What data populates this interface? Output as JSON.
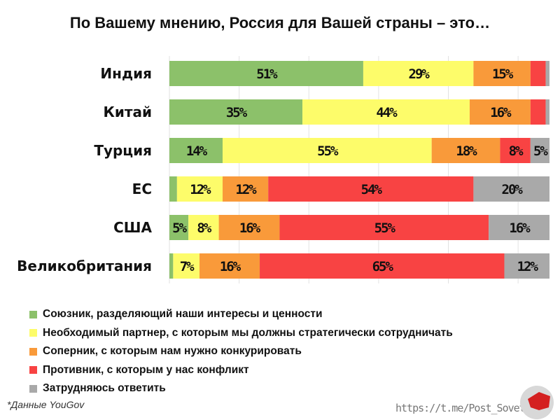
{
  "chart_data": {
    "type": "bar",
    "orientation": "horizontal",
    "stacked": "100%",
    "title": "По Вашему мнению, Россия для Вашей страны – это…",
    "categories": [
      "Индия",
      "Китай",
      "Турция",
      "ЕС",
      "США",
      "Великобритания"
    ],
    "series": [
      {
        "name": "Союзник, разделяющий наши интересы и ценности",
        "color": "#8cc16a",
        "values": [
          51,
          35,
          14,
          2,
          5,
          1
        ],
        "labels": [
          "51%",
          "35%",
          "14%",
          "",
          "5%",
          ""
        ]
      },
      {
        "name": "Необходимый партнер, с которым мы должны стратегически сотрудничать",
        "color": "#fdfc6a",
        "values": [
          29,
          44,
          55,
          12,
          8,
          7
        ],
        "labels": [
          "29%",
          "44%",
          "55%",
          "12%",
          "8%",
          "7%"
        ]
      },
      {
        "name": "Соперник, с которым нам нужно конкурировать",
        "color": "#f99a3a",
        "values": [
          15,
          16,
          18,
          12,
          16,
          16
        ],
        "labels": [
          "15%",
          "16%",
          "18%",
          "12%",
          "16%",
          "16%"
        ]
      },
      {
        "name": "Противник, с которым у нас конфликт",
        "color": "#f84343",
        "values": [
          4,
          4,
          8,
          54,
          55,
          65
        ],
        "labels": [
          "",
          "",
          "8%",
          "54%",
          "55%",
          "65%"
        ]
      },
      {
        "name": "Затрудняюсь ответить",
        "color": "#a9a9a9",
        "values": [
          1,
          1,
          5,
          20,
          16,
          12
        ],
        "labels": [
          "",
          "",
          "5%",
          "20%",
          "16%",
          "12%"
        ]
      }
    ],
    "xlim": [
      0,
      100
    ],
    "grid": true,
    "legend_placement": "bottom"
  },
  "footer": {
    "source": "*Данные YouGov",
    "url": "https://t.me/Post_Sovet"
  }
}
